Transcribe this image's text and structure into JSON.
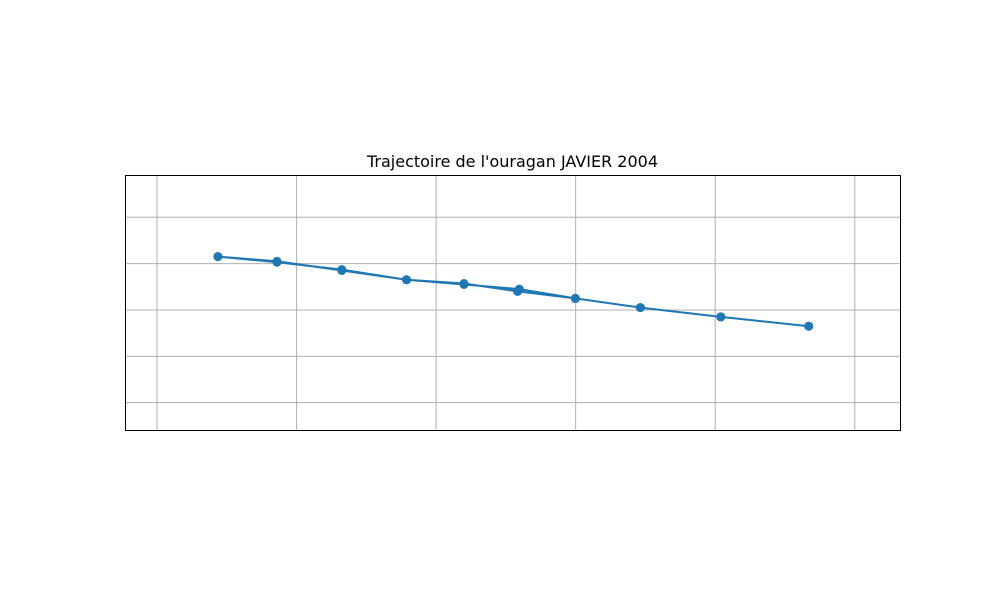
{
  "chart_data": {
    "type": "line",
    "title": "Trajectoire de l'ouragan JAVIER 2004",
    "xlabel": "",
    "ylabel": "",
    "xlim": [
      -2.33,
      25.44
    ],
    "ylim": [
      -1.75,
      3.75
    ],
    "xticks": [
      -1.2,
      3.8,
      8.8,
      13.8,
      18.8,
      23.8
    ],
    "yticks": [
      -1.15,
      -0.15,
      0.85,
      1.85,
      2.85
    ],
    "grid": true,
    "legend": "none",
    "series": [
      {
        "color": "#1f77b4",
        "marker": "circle",
        "x": [
          0.98,
          3.1,
          5.42,
          7.74,
          9.8,
          11.78,
          13.79,
          16.12,
          19.0,
          22.15,
          22.15,
          19.0,
          16.12,
          13.79,
          11.72,
          9.8,
          7.74,
          5.42,
          3.1,
          0.98
        ],
        "y": [
          2.0,
          1.9,
          1.7,
          1.5,
          1.4,
          1.3,
          1.1,
          0.9,
          0.7,
          0.5,
          0.5,
          0.7,
          0.9,
          1.1,
          1.25,
          1.42,
          1.5,
          1.72,
          1.88,
          2.0
        ]
      }
    ]
  }
}
